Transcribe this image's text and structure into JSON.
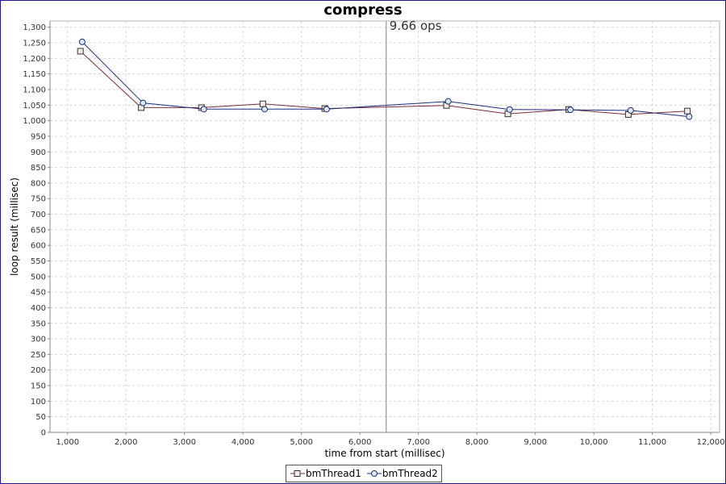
{
  "chart_data": {
    "type": "line",
    "title": "compress",
    "xlabel": "time from start (millisec)",
    "ylabel": "loop result (millisec)",
    "xlim": [
      700,
      12150
    ],
    "ylim": [
      0,
      1320
    ],
    "x_ticks": [
      1000,
      2000,
      3000,
      4000,
      5000,
      6000,
      7000,
      8000,
      9000,
      10000,
      11000,
      12000
    ],
    "x_tick_labels": [
      "1,000",
      "2,000",
      "3,000",
      "4,000",
      "5,000",
      "6,000",
      "7,000",
      "8,000",
      "9,000",
      "10,000",
      "11,000",
      "12,000"
    ],
    "y_ticks": [
      0,
      50,
      100,
      150,
      200,
      250,
      300,
      350,
      400,
      450,
      500,
      550,
      600,
      650,
      700,
      750,
      800,
      850,
      900,
      950,
      1000,
      1050,
      1100,
      1150,
      1200,
      1250,
      1300
    ],
    "y_tick_labels": [
      "0",
      "50",
      "100",
      "150",
      "200",
      "250",
      "300",
      "350",
      "400",
      "450",
      "500",
      "550",
      "600",
      "650",
      "700",
      "750",
      "800",
      "850",
      "900",
      "950",
      "1,000",
      "1,050",
      "1,100",
      "1,150",
      "1,200",
      "1,250",
      "1,300"
    ],
    "grid": true,
    "legend_position": "bottom",
    "marker_line": {
      "x": 6450,
      "label": "9.66 ops"
    },
    "series": [
      {
        "name": "bmThread1",
        "marker": "square",
        "color": "#7a2a3a",
        "points": [
          [
            1220,
            1223
          ],
          [
            2260,
            1042
          ],
          [
            3290,
            1042
          ],
          [
            4340,
            1054
          ],
          [
            5400,
            1039
          ],
          [
            7480,
            1049
          ],
          [
            8530,
            1022
          ],
          [
            9570,
            1036
          ],
          [
            10590,
            1020
          ],
          [
            11600,
            1031
          ]
        ]
      },
      {
        "name": "bmThread2",
        "marker": "circle",
        "color": "#1e2e78",
        "points": [
          [
            1250,
            1253
          ],
          [
            2290,
            1057
          ],
          [
            3330,
            1037
          ],
          [
            4370,
            1037
          ],
          [
            5430,
            1037
          ],
          [
            7510,
            1062
          ],
          [
            8560,
            1036
          ],
          [
            9600,
            1035
          ],
          [
            10630,
            1033
          ],
          [
            11630,
            1013
          ]
        ]
      }
    ]
  }
}
